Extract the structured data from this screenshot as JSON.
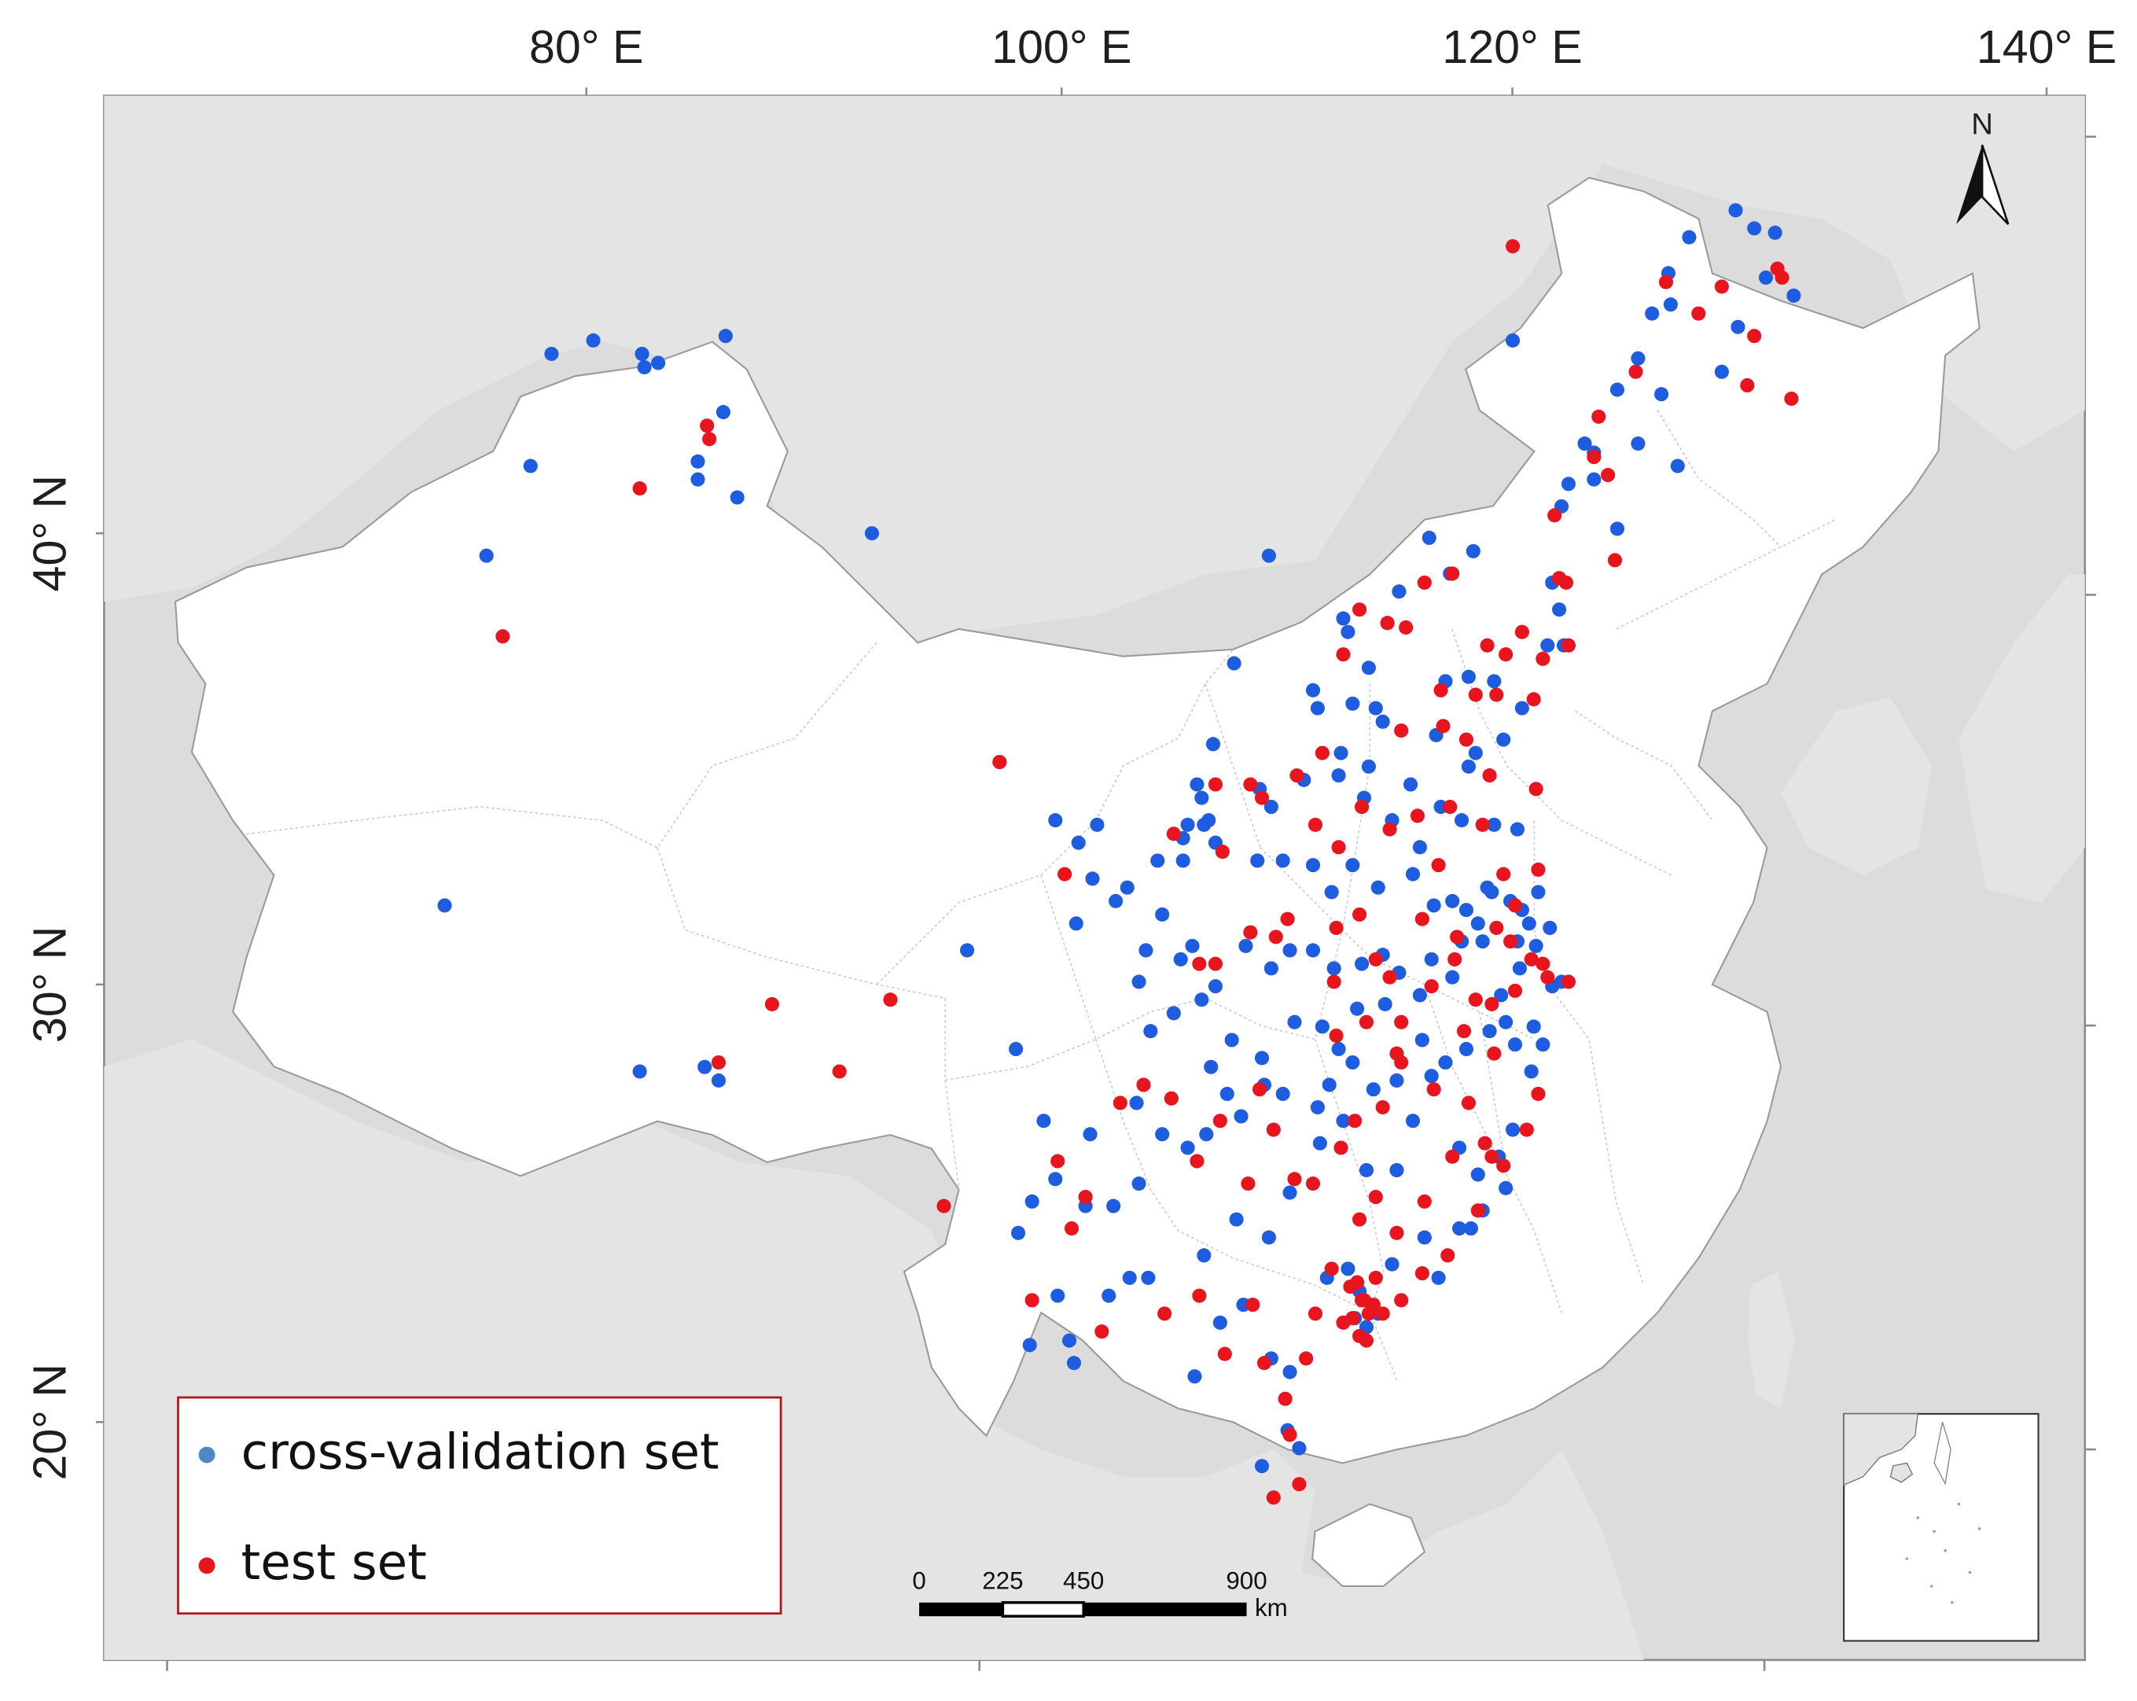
{
  "map": {
    "lon_ticks": [
      "80° E",
      "100° E",
      "120° E",
      "140° E"
    ],
    "lat_ticks": [
      "40° N",
      "30° N",
      "20° N"
    ],
    "north_label": "N",
    "colors": {
      "cross_validation": "#1f5de0",
      "test": "#e8141e",
      "land": "#ffffff",
      "background": "#dcdcdc",
      "legend_border": "#b0151b"
    }
  },
  "legend": {
    "items": [
      {
        "label": "cross-validation set",
        "color": "#4f86c6"
      },
      {
        "label": "test set",
        "color": "#e8141e"
      }
    ]
  },
  "scale_bar": {
    "ticks": [
      "0",
      "225",
      "450",
      "900"
    ],
    "unit": "km"
  },
  "points": {
    "cross_validation": [
      [
        75.7,
        39.5
      ],
      [
        86.0,
        44.4
      ],
      [
        80.3,
        44.3
      ],
      [
        82.4,
        44.0
      ],
      [
        82.5,
        43.7
      ],
      [
        83.1,
        43.8
      ],
      [
        85.9,
        42.7
      ],
      [
        84.8,
        41.6
      ],
      [
        84.8,
        41.2
      ],
      [
        77.6,
        41.5
      ],
      [
        78.5,
        44.0
      ],
      [
        92.3,
        40.0
      ],
      [
        86.5,
        40.8
      ],
      [
        73.9,
        31.7
      ],
      [
        82.3,
        28.0
      ],
      [
        85.7,
        27.8
      ],
      [
        85.1,
        28.1
      ],
      [
        96.4,
        30.7
      ],
      [
        97.8,
        34.9
      ],
      [
        100.2,
        33.6
      ],
      [
        101.2,
        33.1
      ],
      [
        102.0,
        33.5
      ],
      [
        101.8,
        32.3
      ],
      [
        101.1,
        31.3
      ],
      [
        102.8,
        31.8
      ],
      [
        103.3,
        32.1
      ],
      [
        104.6,
        32.7
      ],
      [
        105.7,
        32.7
      ],
      [
        105.7,
        33.2
      ],
      [
        106.3,
        34.4
      ],
      [
        106.5,
        34.1
      ],
      [
        107.0,
        35.3
      ],
      [
        106.6,
        33.5
      ],
      [
        106.8,
        33.6
      ],
      [
        107.9,
        37.1
      ],
      [
        109.4,
        39.5
      ],
      [
        111.3,
        36.5
      ],
      [
        112.8,
        37.8
      ],
      [
        112.6,
        38.1
      ],
      [
        114.5,
        38.0
      ],
      [
        116.3,
        39.9
      ],
      [
        117.2,
        39.1
      ],
      [
        118.2,
        39.6
      ],
      [
        119.9,
        44.3
      ],
      [
        122.3,
        41.1
      ],
      [
        123.4,
        41.8
      ],
      [
        125.3,
        43.9
      ],
      [
        126.6,
        45.8
      ],
      [
        125.9,
        44.9
      ],
      [
        127.5,
        46.6
      ],
      [
        129.6,
        44.6
      ],
      [
        130.3,
        46.8
      ],
      [
        131.2,
        46.7
      ],
      [
        132.0,
        45.3
      ],
      [
        124.4,
        40.1
      ],
      [
        125.3,
        42.0
      ],
      [
        127.0,
        41.5
      ],
      [
        126.3,
        43.1
      ],
      [
        124.4,
        43.2
      ],
      [
        123.0,
        42.0
      ],
      [
        126.7,
        45.1
      ],
      [
        128.9,
        43.6
      ],
      [
        130.8,
        45.7
      ],
      [
        129.5,
        47.2
      ],
      [
        123.4,
        41.2
      ],
      [
        122.0,
        40.6
      ],
      [
        121.6,
        38.9
      ],
      [
        122.1,
        37.5
      ],
      [
        121.4,
        37.5
      ],
      [
        120.3,
        36.1
      ],
      [
        119.5,
        35.4
      ],
      [
        118.3,
        35.1
      ],
      [
        117.0,
        36.7
      ],
      [
        116.6,
        35.5
      ],
      [
        115.5,
        34.4
      ],
      [
        113.7,
        34.8
      ],
      [
        112.4,
        34.6
      ],
      [
        114.3,
        35.8
      ],
      [
        110.9,
        34.5
      ],
      [
        109.0,
        34.3
      ],
      [
        108.9,
        32.7
      ],
      [
        107.1,
        33.1
      ],
      [
        105.9,
        33.5
      ],
      [
        104.1,
        30.7
      ],
      [
        103.8,
        30.0
      ],
      [
        104.8,
        31.5
      ],
      [
        105.6,
        30.5
      ],
      [
        106.1,
        30.8
      ],
      [
        106.5,
        29.6
      ],
      [
        107.1,
        29.9
      ],
      [
        108.4,
        30.8
      ],
      [
        109.5,
        30.3
      ],
      [
        110.3,
        30.7
      ],
      [
        111.3,
        30.7
      ],
      [
        112.2,
        30.3
      ],
      [
        113.4,
        30.4
      ],
      [
        114.3,
        30.6
      ],
      [
        115.0,
        30.2
      ],
      [
        116.4,
        30.5
      ],
      [
        117.3,
        31.8
      ],
      [
        118.4,
        31.3
      ],
      [
        119.0,
        32.0
      ],
      [
        120.3,
        31.6
      ],
      [
        120.6,
        31.3
      ],
      [
        121.5,
        31.2
      ],
      [
        120.2,
        30.3
      ],
      [
        121.6,
        29.9
      ],
      [
        120.7,
        28.0
      ],
      [
        119.6,
        29.1
      ],
      [
        118.9,
        28.9
      ],
      [
        117.9,
        28.5
      ],
      [
        117.0,
        28.2
      ],
      [
        116.0,
        28.7
      ],
      [
        115.9,
        29.7
      ],
      [
        114.9,
        27.8
      ],
      [
        113.9,
        27.6
      ],
      [
        113.0,
        28.2
      ],
      [
        112.0,
        27.7
      ],
      [
        111.5,
        27.2
      ],
      [
        110.0,
        27.5
      ],
      [
        109.2,
        27.7
      ],
      [
        108.2,
        27.0
      ],
      [
        106.7,
        26.6
      ],
      [
        105.9,
        26.3
      ],
      [
        104.8,
        26.6
      ],
      [
        103.8,
        25.5
      ],
      [
        102.7,
        25.0
      ],
      [
        101.5,
        25.0
      ],
      [
        100.2,
        25.6
      ],
      [
        99.2,
        25.1
      ],
      [
        98.6,
        24.4
      ],
      [
        100.8,
        22.0
      ],
      [
        101.0,
        21.5
      ],
      [
        103.4,
        23.4
      ],
      [
        104.2,
        23.4
      ],
      [
        106.6,
        23.9
      ],
      [
        107.3,
        22.4
      ],
      [
        108.3,
        22.8
      ],
      [
        109.4,
        24.3
      ],
      [
        110.3,
        25.3
      ],
      [
        111.6,
        26.4
      ],
      [
        112.6,
        26.9
      ],
      [
        113.6,
        25.8
      ],
      [
        114.9,
        25.8
      ],
      [
        115.6,
        26.9
      ],
      [
        116.4,
        27.9
      ],
      [
        117.6,
        26.3
      ],
      [
        118.1,
        24.5
      ],
      [
        119.3,
        26.1
      ],
      [
        119.6,
        25.4
      ],
      [
        118.6,
        24.9
      ],
      [
        117.6,
        24.5
      ],
      [
        116.7,
        23.4
      ],
      [
        116.1,
        24.3
      ],
      [
        114.7,
        23.7
      ],
      [
        113.3,
        23.1
      ],
      [
        113.1,
        22.5
      ],
      [
        113.6,
        22.3
      ],
      [
        114.1,
        22.6
      ],
      [
        112.8,
        23.6
      ],
      [
        111.9,
        23.4
      ],
      [
        110.3,
        21.3
      ],
      [
        109.5,
        21.6
      ],
      [
        110.2,
        20.0
      ],
      [
        114.4,
        29.5
      ],
      [
        113.2,
        29.4
      ],
      [
        112.4,
        28.5
      ],
      [
        111.7,
        29.0
      ],
      [
        110.5,
        29.1
      ],
      [
        109.1,
        28.3
      ],
      [
        107.8,
        28.7
      ],
      [
        107.6,
        27.5
      ],
      [
        106.9,
        28.1
      ],
      [
        119.4,
        29.7
      ],
      [
        120.9,
        30.8
      ],
      [
        120.1,
        30.9
      ],
      [
        119.8,
        31.8
      ],
      [
        118.8,
        32.1
      ],
      [
        117.7,
        30.9
      ],
      [
        117.9,
        31.6
      ],
      [
        116.5,
        31.7
      ],
      [
        115.6,
        32.4
      ],
      [
        114.1,
        32.1
      ],
      [
        113.0,
        32.6
      ],
      [
        112.1,
        32.0
      ],
      [
        111.3,
        32.6
      ],
      [
        110.0,
        32.7
      ],
      [
        109.5,
        33.9
      ],
      [
        118.0,
        34.8
      ],
      [
        117.7,
        33.6
      ],
      [
        116.8,
        33.9
      ],
      [
        119.1,
        33.5
      ],
      [
        120.1,
        33.4
      ],
      [
        121.0,
        32.0
      ],
      [
        118.6,
        30.9
      ],
      [
        117.3,
        30.1
      ],
      [
        120.8,
        29.0
      ],
      [
        121.2,
        28.6
      ],
      [
        120.0,
        28.6
      ],
      [
        122.0,
        30.0
      ],
      [
        113.5,
        34.1
      ],
      [
        114.7,
        33.6
      ],
      [
        115.9,
        33.0
      ],
      [
        114.0,
        36.1
      ],
      [
        113.0,
        36.2
      ],
      [
        112.5,
        35.1
      ],
      [
        111.5,
        36.1
      ],
      [
        118.0,
        36.8
      ],
      [
        119.1,
        36.7
      ],
      [
        98.5,
        28.5
      ],
      [
        99.7,
        26.9
      ],
      [
        100.3,
        23.0
      ],
      [
        102.5,
        23.0
      ],
      [
        103.7,
        27.3
      ],
      [
        104.3,
        28.9
      ],
      [
        105.3,
        29.3
      ],
      [
        101.7,
        26.6
      ],
      [
        99.1,
        21.9
      ],
      [
        108.0,
        24.7
      ],
      [
        106.2,
        21.2
      ],
      [
        109.1,
        19.2
      ],
      [
        110.7,
        19.6
      ],
      [
        119.9,
        26.7
      ],
      [
        118.4,
        25.7
      ],
      [
        121.9,
        38.3
      ],
      [
        115.0,
        38.7
      ],
      [
        113.7,
        37.0
      ]
    ],
    "test": [
      [
        76.4,
        37.7
      ],
      [
        85.2,
        42.4
      ],
      [
        85.3,
        42.1
      ],
      [
        82.3,
        41.0
      ],
      [
        88.0,
        29.5
      ],
      [
        85.7,
        28.2
      ],
      [
        90.9,
        28.0
      ],
      [
        93.1,
        29.6
      ],
      [
        95.4,
        25.0
      ],
      [
        97.8,
        34.9
      ],
      [
        100.6,
        32.4
      ],
      [
        105.3,
        33.3
      ],
      [
        106.4,
        30.4
      ],
      [
        107.1,
        30.4
      ],
      [
        107.4,
        32.9
      ],
      [
        108.6,
        31.1
      ],
      [
        109.0,
        27.6
      ],
      [
        119.9,
        46.4
      ],
      [
        123.6,
        42.6
      ],
      [
        124.0,
        41.3
      ],
      [
        126.5,
        45.6
      ],
      [
        127.9,
        44.9
      ],
      [
        128.9,
        45.5
      ],
      [
        130.0,
        43.3
      ],
      [
        130.3,
        44.4
      ],
      [
        131.5,
        45.7
      ],
      [
        131.9,
        43.0
      ],
      [
        131.3,
        45.9
      ],
      [
        125.2,
        43.6
      ],
      [
        123.4,
        41.7
      ],
      [
        121.7,
        40.4
      ],
      [
        124.3,
        39.4
      ],
      [
        122.2,
        38.9
      ],
      [
        120.3,
        37.8
      ],
      [
        119.6,
        37.3
      ],
      [
        118.3,
        36.4
      ],
      [
        116.8,
        36.5
      ],
      [
        114.5,
        38.0
      ],
      [
        113.3,
        38.3
      ],
      [
        112.6,
        37.3
      ],
      [
        111.7,
        35.1
      ],
      [
        110.6,
        34.6
      ],
      [
        109.1,
        34.1
      ],
      [
        108.6,
        34.4
      ],
      [
        107.1,
        34.4
      ],
      [
        109.7,
        31.0
      ],
      [
        110.2,
        31.4
      ],
      [
        112.3,
        31.2
      ],
      [
        112.2,
        30.0
      ],
      [
        113.3,
        31.5
      ],
      [
        114.0,
        30.5
      ],
      [
        114.6,
        30.1
      ],
      [
        115.1,
        29.1
      ],
      [
        116.4,
        29.9
      ],
      [
        117.4,
        30.5
      ],
      [
        118.3,
        29.6
      ],
      [
        119.0,
        29.5
      ],
      [
        120.0,
        29.8
      ],
      [
        121.2,
        30.4
      ],
      [
        121.4,
        30.1
      ],
      [
        122.3,
        30.0
      ],
      [
        120.7,
        30.5
      ],
      [
        119.8,
        30.9
      ],
      [
        120.0,
        31.7
      ],
      [
        119.5,
        32.4
      ],
      [
        118.6,
        33.5
      ],
      [
        117.2,
        33.9
      ],
      [
        116.7,
        32.6
      ],
      [
        115.8,
        33.7
      ],
      [
        114.6,
        33.4
      ],
      [
        113.4,
        33.9
      ],
      [
        112.4,
        33.0
      ],
      [
        111.4,
        33.5
      ],
      [
        115.1,
        35.6
      ],
      [
        116.9,
        35.7
      ],
      [
        117.9,
        35.4
      ],
      [
        118.9,
        34.6
      ],
      [
        120.9,
        34.3
      ],
      [
        121.0,
        32.5
      ],
      [
        119.2,
        31.2
      ],
      [
        117.5,
        31.0
      ],
      [
        116.0,
        31.4
      ],
      [
        116.5,
        27.6
      ],
      [
        115.1,
        28.2
      ],
      [
        114.3,
        27.2
      ],
      [
        113.1,
        26.9
      ],
      [
        112.5,
        26.3
      ],
      [
        111.3,
        25.5
      ],
      [
        110.5,
        25.6
      ],
      [
        109.6,
        26.7
      ],
      [
        108.5,
        25.5
      ],
      [
        107.3,
        26.9
      ],
      [
        106.3,
        26.0
      ],
      [
        105.2,
        27.4
      ],
      [
        104.0,
        27.7
      ],
      [
        103.0,
        27.3
      ],
      [
        101.5,
        25.2
      ],
      [
        100.3,
        26.0
      ],
      [
        99.2,
        22.9
      ],
      [
        100.9,
        24.5
      ],
      [
        102.2,
        22.2
      ],
      [
        104.9,
        22.6
      ],
      [
        106.4,
        23.0
      ],
      [
        107.5,
        21.7
      ],
      [
        108.7,
        22.8
      ],
      [
        109.2,
        21.5
      ],
      [
        110.1,
        20.7
      ],
      [
        111.0,
        21.6
      ],
      [
        113.0,
        22.5
      ],
      [
        113.5,
        22.9
      ],
      [
        114.3,
        22.6
      ],
      [
        115.1,
        22.9
      ],
      [
        116.0,
        23.5
      ],
      [
        117.1,
        23.9
      ],
      [
        118.4,
        24.9
      ],
      [
        119.5,
        25.9
      ],
      [
        120.5,
        26.7
      ],
      [
        121.0,
        27.5
      ],
      [
        119.1,
        28.4
      ],
      [
        118.0,
        27.3
      ],
      [
        117.3,
        26.1
      ],
      [
        116.1,
        25.1
      ],
      [
        114.9,
        24.4
      ],
      [
        114.0,
        25.2
      ],
      [
        113.3,
        24.7
      ],
      [
        112.1,
        23.6
      ],
      [
        111.4,
        22.6
      ],
      [
        110.3,
        19.9
      ],
      [
        110.7,
        18.8
      ],
      [
        109.6,
        18.5
      ],
      [
        112.3,
        28.8
      ],
      [
        113.6,
        29.1
      ],
      [
        114.9,
        28.4
      ],
      [
        117.8,
        28.9
      ],
      [
        118.7,
        26.4
      ],
      [
        119.0,
        26.1
      ],
      [
        122.3,
        37.5
      ],
      [
        120.8,
        36.3
      ],
      [
        121.2,
        37.2
      ],
      [
        121.9,
        39.0
      ],
      [
        119.2,
        36.4
      ],
      [
        118.8,
        37.5
      ],
      [
        117.3,
        39.1
      ],
      [
        116.1,
        38.9
      ],
      [
        115.3,
        37.9
      ],
      [
        113.2,
        23.3
      ],
      [
        113.9,
        22.8
      ],
      [
        114.0,
        23.4
      ],
      [
        112.6,
        22.4
      ],
      [
        113.6,
        22.0
      ],
      [
        113.3,
        22.1
      ],
      [
        113.7,
        22.6
      ],
      [
        112.9,
        23.2
      ],
      [
        113.4,
        22.9
      ]
    ]
  }
}
